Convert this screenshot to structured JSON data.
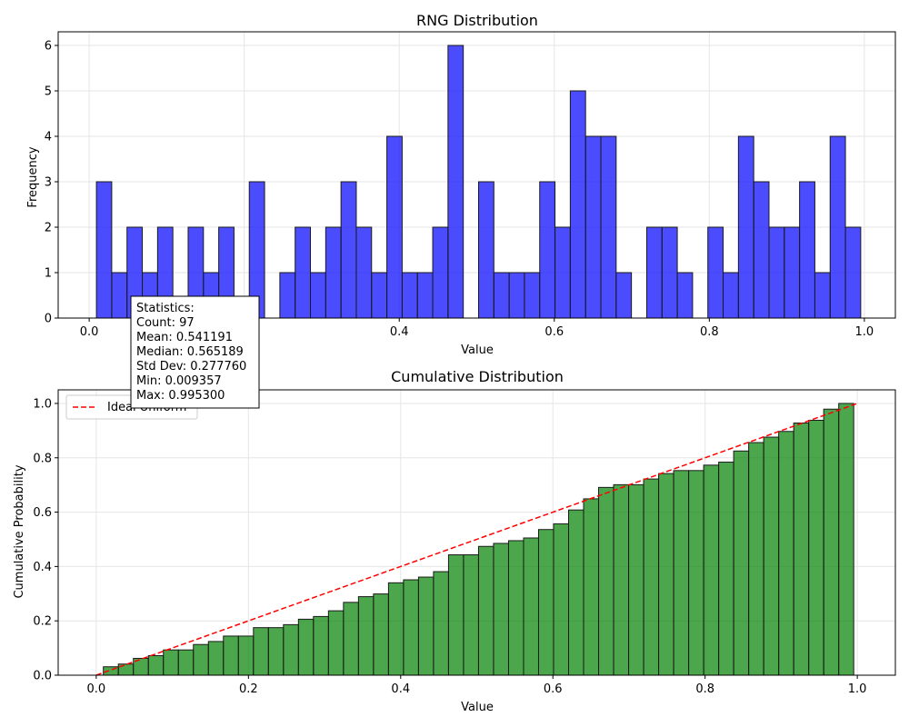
{
  "colors": {
    "hist_bar": "#0000ff",
    "cum_bar": "#008000",
    "edge": "#1a1a1a",
    "ideal_line": "#ff0000",
    "grid": "#e6e6e6"
  },
  "stats_box": {
    "lines": [
      "Statistics:",
      "Count: 97",
      "Mean: 0.541191",
      "Median: 0.565189",
      "Std Dev: 0.277760",
      "Min: 0.009357",
      "Max: 0.995300"
    ]
  },
  "chart_data": [
    {
      "type": "bar",
      "title": "RNG Distribution",
      "xlabel": "Value",
      "ylabel": "Frequency",
      "xlim": [
        -0.04,
        1.04
      ],
      "ylim": [
        0,
        6.3
      ],
      "xticks": [
        0.0,
        0.2,
        0.4,
        0.6,
        0.8,
        1.0
      ],
      "yticks": [
        0,
        1,
        2,
        3,
        4,
        5,
        6
      ],
      "grid": true,
      "bins_start": 0.009357,
      "bins_end": 0.9953,
      "values": [
        3,
        1,
        2,
        1,
        2,
        0,
        2,
        1,
        2,
        0,
        3,
        0,
        1,
        2,
        1,
        2,
        3,
        2,
        1,
        4,
        1,
        1,
        2,
        6,
        0,
        3,
        1,
        1,
        1,
        3,
        2,
        5,
        4,
        4,
        1,
        0,
        2,
        2,
        1,
        0,
        2,
        1,
        4,
        3,
        2,
        2,
        3,
        1,
        4,
        2
      ]
    },
    {
      "type": "bar",
      "title": "Cumulative Distribution",
      "xlabel": "Value",
      "ylabel": "Cumulative Probability",
      "xlim": [
        -0.05,
        1.05
      ],
      "ylim": [
        0,
        1.05
      ],
      "xticks": [
        0.0,
        0.2,
        0.4,
        0.6,
        0.8,
        1.0
      ],
      "yticks": [
        0.0,
        0.2,
        0.4,
        0.6,
        0.8,
        1.0
      ],
      "grid": true,
      "legend": "top-left",
      "bins_start": 0.009357,
      "bins_end": 0.9953,
      "values": [
        0.031,
        0.041,
        0.062,
        0.072,
        0.093,
        0.093,
        0.113,
        0.124,
        0.144,
        0.144,
        0.175,
        0.175,
        0.186,
        0.206,
        0.216,
        0.237,
        0.268,
        0.289,
        0.299,
        0.34,
        0.351,
        0.361,
        0.381,
        0.443,
        0.443,
        0.474,
        0.485,
        0.495,
        0.505,
        0.536,
        0.557,
        0.608,
        0.649,
        0.691,
        0.701,
        0.701,
        0.722,
        0.742,
        0.753,
        0.753,
        0.773,
        0.784,
        0.825,
        0.856,
        0.876,
        0.897,
        0.928,
        0.938,
        0.979,
        1.0
      ],
      "series": [
        {
          "name": "Ideal Uniform",
          "x": [
            0,
            1
          ],
          "y": [
            0,
            1
          ]
        }
      ]
    }
  ]
}
